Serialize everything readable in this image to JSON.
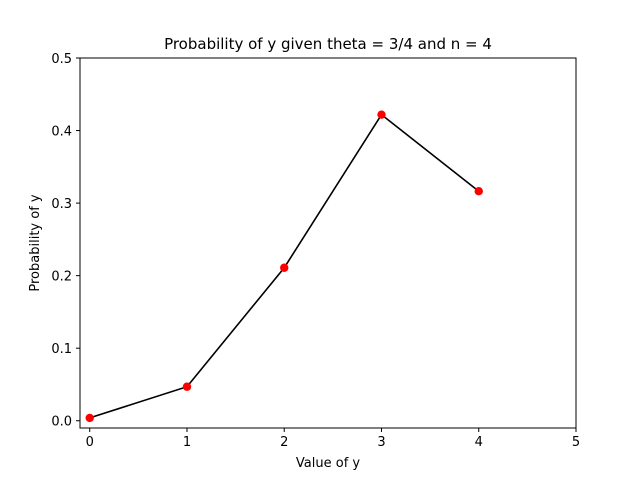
{
  "chart_data": {
    "type": "line",
    "title": "Probability of y given theta = 3/4 and n = 4",
    "xlabel": "Value of y",
    "ylabel": "Probability of y",
    "xlim": [
      -0.1,
      5
    ],
    "ylim": [
      -0.01,
      0.5
    ],
    "x_ticks": [
      0,
      1,
      2,
      3,
      4,
      5
    ],
    "x_tick_labels": [
      "0",
      "1",
      "2",
      "3",
      "4",
      "5"
    ],
    "y_ticks": [
      0.0,
      0.1,
      0.2,
      0.3,
      0.4,
      0.5
    ],
    "y_tick_labels": [
      "0.0",
      "0.1",
      "0.2",
      "0.3",
      "0.4",
      "0.5"
    ],
    "grid": false,
    "series": [
      {
        "x": [
          0,
          1,
          2,
          3,
          4
        ],
        "y": [
          0.0039,
          0.0469,
          0.2109,
          0.4219,
          0.3164
        ],
        "line_color": "#000000",
        "marker_color": "#ff0000"
      }
    ]
  }
}
